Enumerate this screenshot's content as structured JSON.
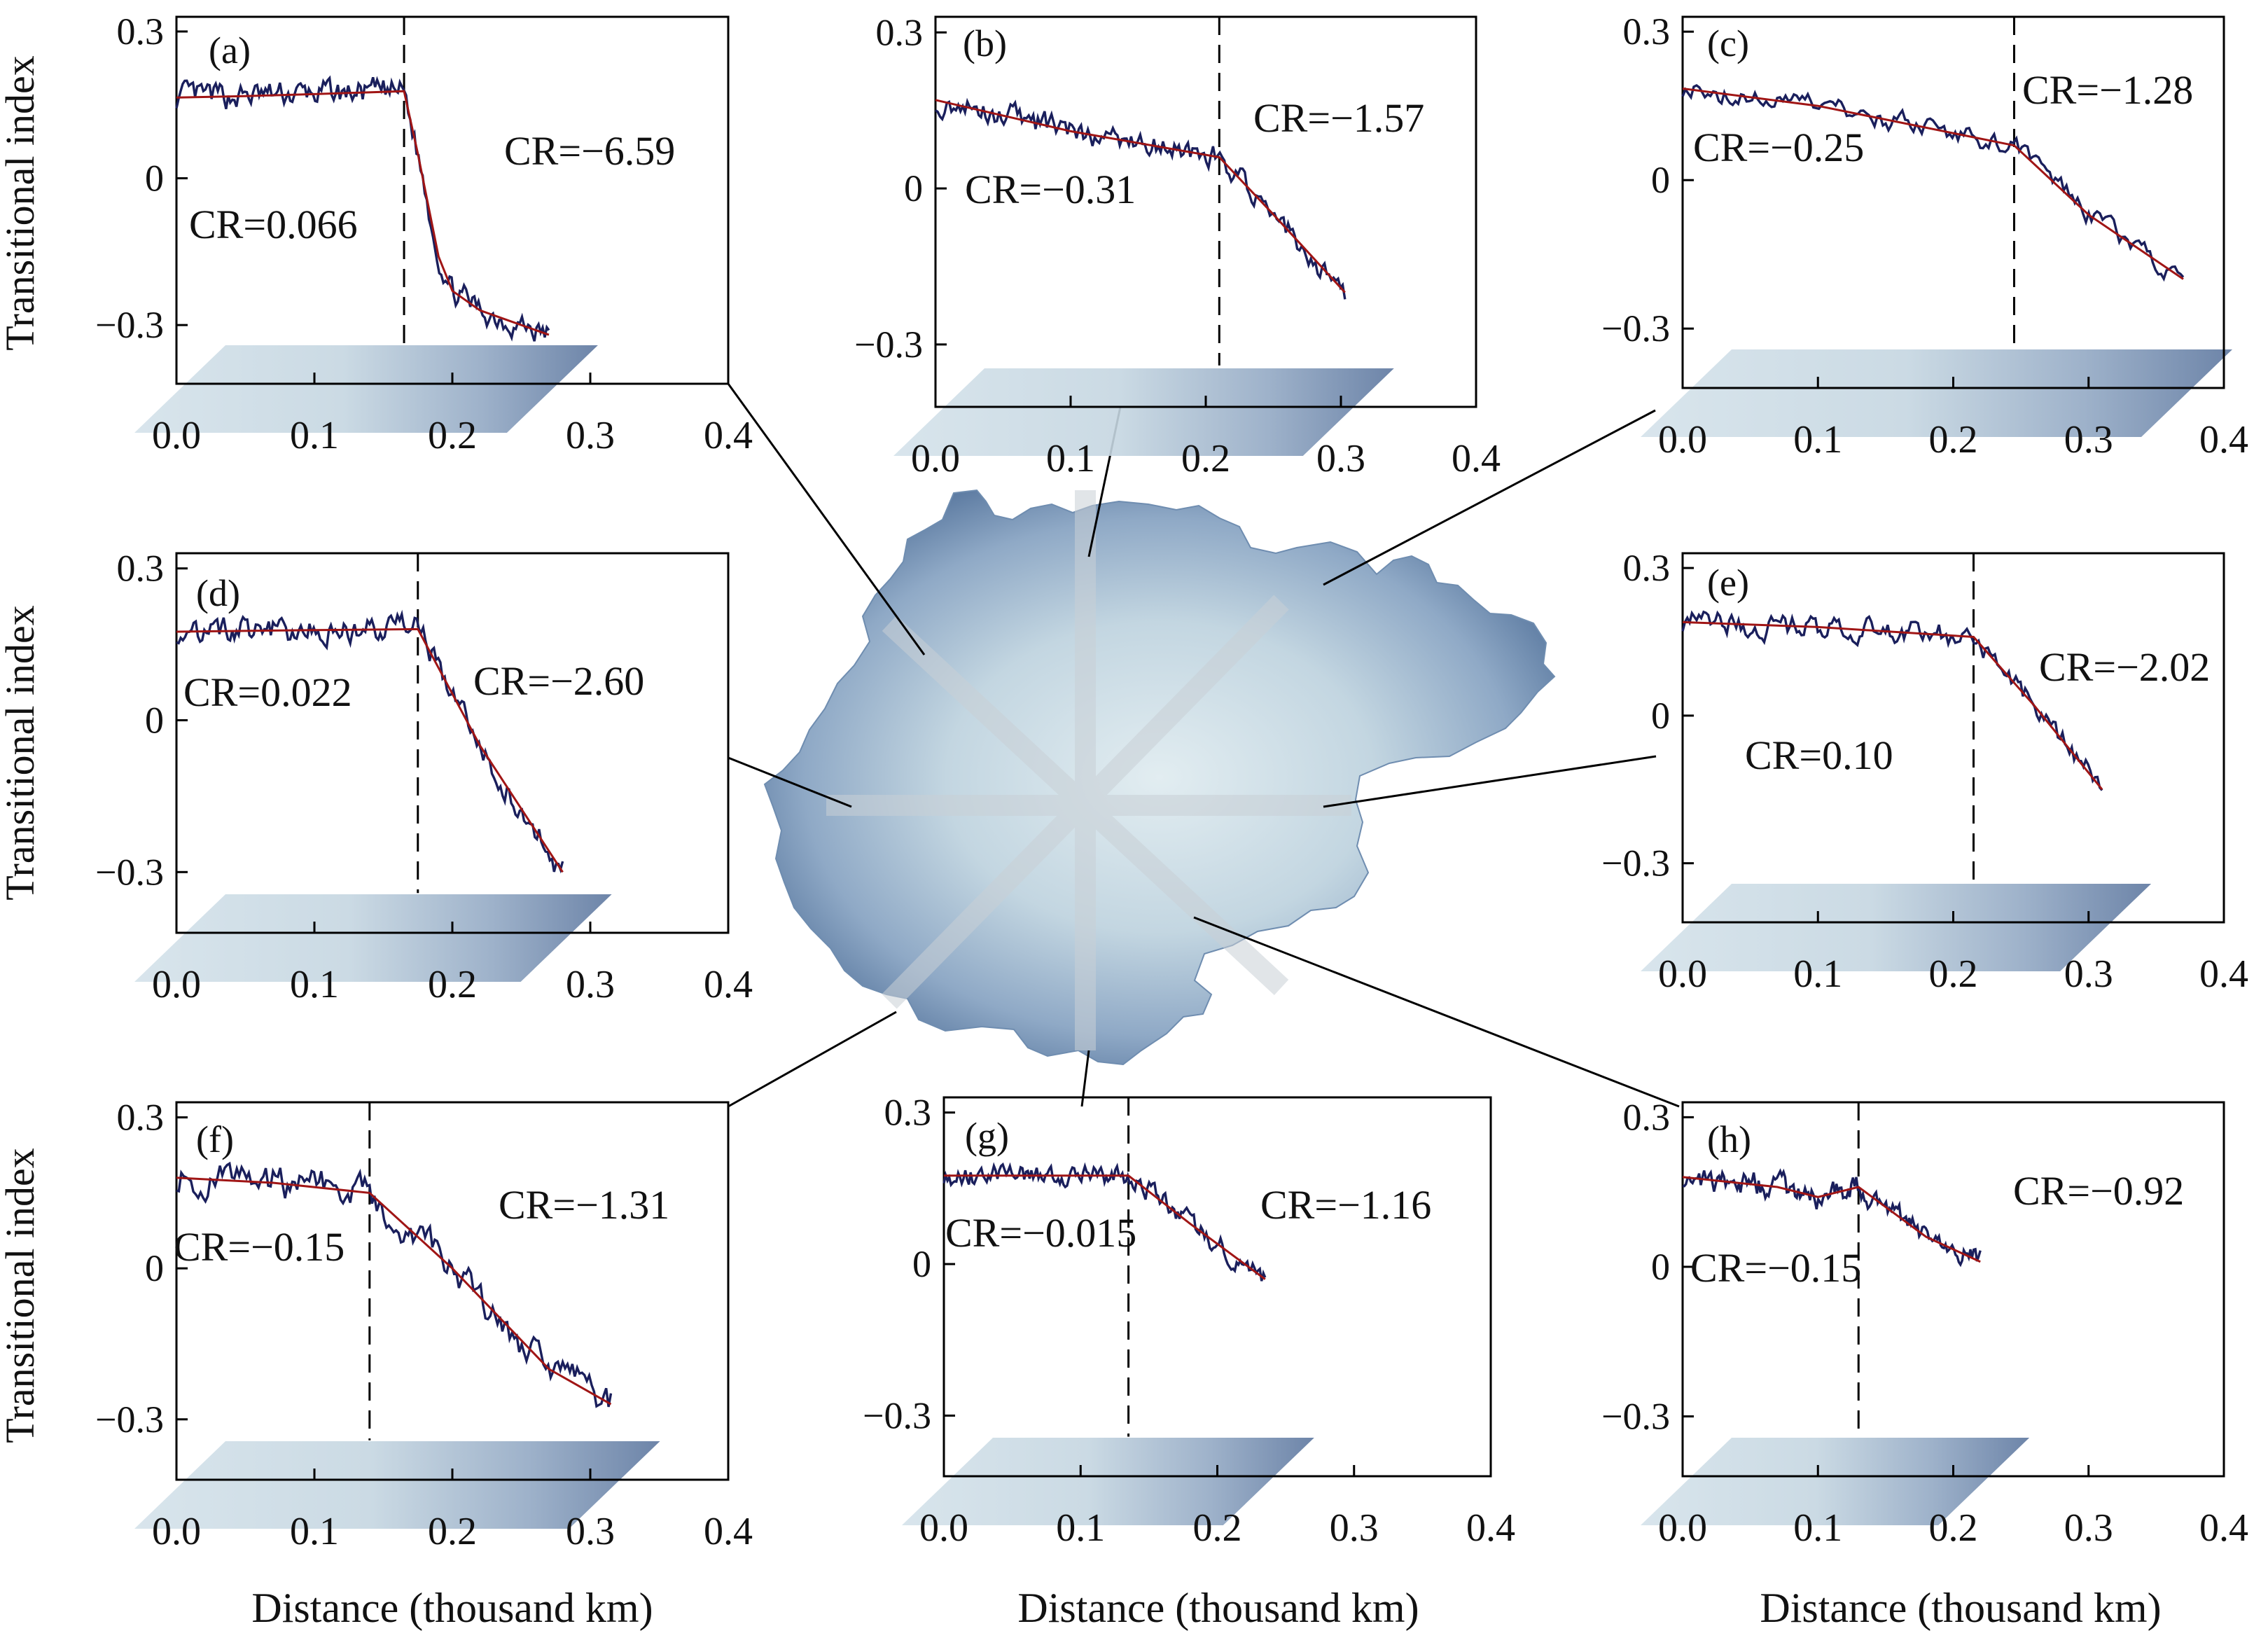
{
  "figure": {
    "ylabel": "Transitional index",
    "xlabel": "Distance (thousand km)",
    "colors": {
      "observed": "#1a1f5c",
      "fit": "#a01515",
      "map_dark": "#4a6a94",
      "map_light": "#dde9ee"
    }
  },
  "chart_data": [
    {
      "id": "a",
      "type": "line",
      "panel_label": "(a)",
      "cr_left": "CR=0.066",
      "cr_right": "CR=−6.59",
      "xticks": [
        "0.0",
        "0.1",
        "0.2",
        "0.3",
        "0.4"
      ],
      "yticks": [
        "0.3",
        "0",
        "−0.3"
      ],
      "xlim": [
        0,
        0.4
      ],
      "ylim": [
        -0.42,
        0.33
      ],
      "breakpoint": 0.165,
      "x_end": 0.27,
      "noise": 0.02,
      "series": [
        {
          "x": [
            0,
            0.05,
            0.1,
            0.165,
            0.175,
            0.19,
            0.2,
            0.22,
            0.24,
            0.27
          ],
          "values": [
            0.165,
            0.168,
            0.172,
            0.178,
            0.05,
            -0.16,
            -0.23,
            -0.27,
            -0.29,
            -0.32
          ]
        }
      ]
    },
    {
      "id": "b",
      "type": "line",
      "panel_label": "(b)",
      "cr_left": "CR=−0.31",
      "cr_right": "CR=−1.57",
      "xticks": [
        "0.0",
        "0.1",
        "0.2",
        "0.3",
        "0.4"
      ],
      "yticks": [
        "0.3",
        "0",
        "−0.3"
      ],
      "xlim": [
        0,
        0.4
      ],
      "ylim": [
        -0.42,
        0.33
      ],
      "breakpoint": 0.21,
      "x_end": 0.303,
      "noise": 0.018,
      "series": [
        {
          "x": [
            0,
            0.1,
            0.21,
            0.25,
            0.303
          ],
          "values": [
            0.17,
            0.11,
            0.06,
            -0.05,
            -0.2
          ]
        }
      ]
    },
    {
      "id": "c",
      "type": "line",
      "panel_label": "(c)",
      "cr_left": "CR=−0.25",
      "cr_right": "CR=−1.28",
      "xticks": [
        "0.0",
        "0.1",
        "0.2",
        "0.3",
        "0.4"
      ],
      "yticks": [
        "0.3",
        "0",
        "−0.3"
      ],
      "xlim": [
        0,
        0.4
      ],
      "ylim": [
        -0.42,
        0.33
      ],
      "breakpoint": 0.245,
      "x_end": 0.37,
      "noise": 0.015,
      "series": [
        {
          "x": [
            0,
            0.1,
            0.245,
            0.3,
            0.37
          ],
          "values": [
            0.185,
            0.15,
            0.07,
            -0.07,
            -0.2
          ]
        }
      ]
    },
    {
      "id": "d",
      "type": "line",
      "panel_label": "(d)",
      "cr_left": "CR=0.022",
      "cr_right": "CR=−2.60",
      "xticks": [
        "0.0",
        "0.1",
        "0.2",
        "0.3",
        "0.4"
      ],
      "yticks": [
        "0.3",
        "0",
        "−0.3"
      ],
      "xlim": [
        0,
        0.4
      ],
      "ylim": [
        -0.42,
        0.33
      ],
      "breakpoint": 0.175,
      "x_end": 0.28,
      "noise": 0.02,
      "series": [
        {
          "x": [
            0,
            0.1,
            0.175,
            0.22,
            0.28
          ],
          "values": [
            0.175,
            0.178,
            0.18,
            -0.05,
            -0.3
          ]
        }
      ]
    },
    {
      "id": "e",
      "type": "line",
      "panel_label": "(e)",
      "cr_left": "CR=0.10",
      "cr_right": "CR=−2.02",
      "xticks": [
        "0.0",
        "0.1",
        "0.2",
        "0.3",
        "0.4"
      ],
      "yticks": [
        "0.3",
        "0",
        "−0.3"
      ],
      "xlim": [
        0,
        0.4
      ],
      "ylim": [
        -0.42,
        0.33
      ],
      "breakpoint": 0.215,
      "x_end": 0.31,
      "noise": 0.018,
      "series": [
        {
          "x": [
            0,
            0.1,
            0.215,
            0.26,
            0.31
          ],
          "values": [
            0.19,
            0.18,
            0.16,
            0.02,
            -0.15
          ]
        }
      ]
    },
    {
      "id": "f",
      "type": "line",
      "panel_label": "(f)",
      "cr_left": "CR=−0.15",
      "cr_right": "CR=−1.31",
      "xticks": [
        "0.0",
        "0.1",
        "0.2",
        "0.3",
        "0.4"
      ],
      "yticks": [
        "0.3",
        "0",
        "−0.3"
      ],
      "xlim": [
        0,
        0.4
      ],
      "ylim": [
        -0.42,
        0.33
      ],
      "breakpoint": 0.14,
      "x_end": 0.315,
      "noise": 0.025,
      "series": [
        {
          "x": [
            0,
            0.07,
            0.14,
            0.2,
            0.27,
            0.315
          ],
          "values": [
            0.18,
            0.17,
            0.15,
            0.0,
            -0.2,
            -0.27
          ]
        }
      ]
    },
    {
      "id": "g",
      "type": "line",
      "panel_label": "(g)",
      "cr_left": "CR=−0.015",
      "cr_right": "CR=−1.16",
      "xticks": [
        "0.0",
        "0.1",
        "0.2",
        "0.3",
        "0.4"
      ],
      "yticks": [
        "0.3",
        "0",
        "−0.3"
      ],
      "xlim": [
        0,
        0.4
      ],
      "ylim": [
        -0.42,
        0.33
      ],
      "breakpoint": 0.135,
      "x_end": 0.235,
      "noise": 0.015,
      "series": [
        {
          "x": [
            0,
            0.07,
            0.135,
            0.18,
            0.235
          ],
          "values": [
            0.175,
            0.175,
            0.175,
            0.08,
            -0.03
          ]
        }
      ]
    },
    {
      "id": "h",
      "type": "line",
      "panel_label": "(h)",
      "cr_left": "CR=−0.15",
      "cr_right": "CR=−0.92",
      "xticks": [
        "0.0",
        "0.1",
        "0.2",
        "0.3",
        "0.4"
      ],
      "yticks": [
        "0.3",
        "0",
        "−0.3"
      ],
      "xlim": [
        0,
        0.4
      ],
      "ylim": [
        -0.42,
        0.33
      ],
      "breakpoint": 0.13,
      "x_end": 0.22,
      "noise": 0.018,
      "series": [
        {
          "x": [
            0,
            0.07,
            0.1,
            0.13,
            0.18,
            0.22
          ],
          "values": [
            0.18,
            0.16,
            0.14,
            0.16,
            0.06,
            0.01
          ]
        }
      ]
    }
  ]
}
